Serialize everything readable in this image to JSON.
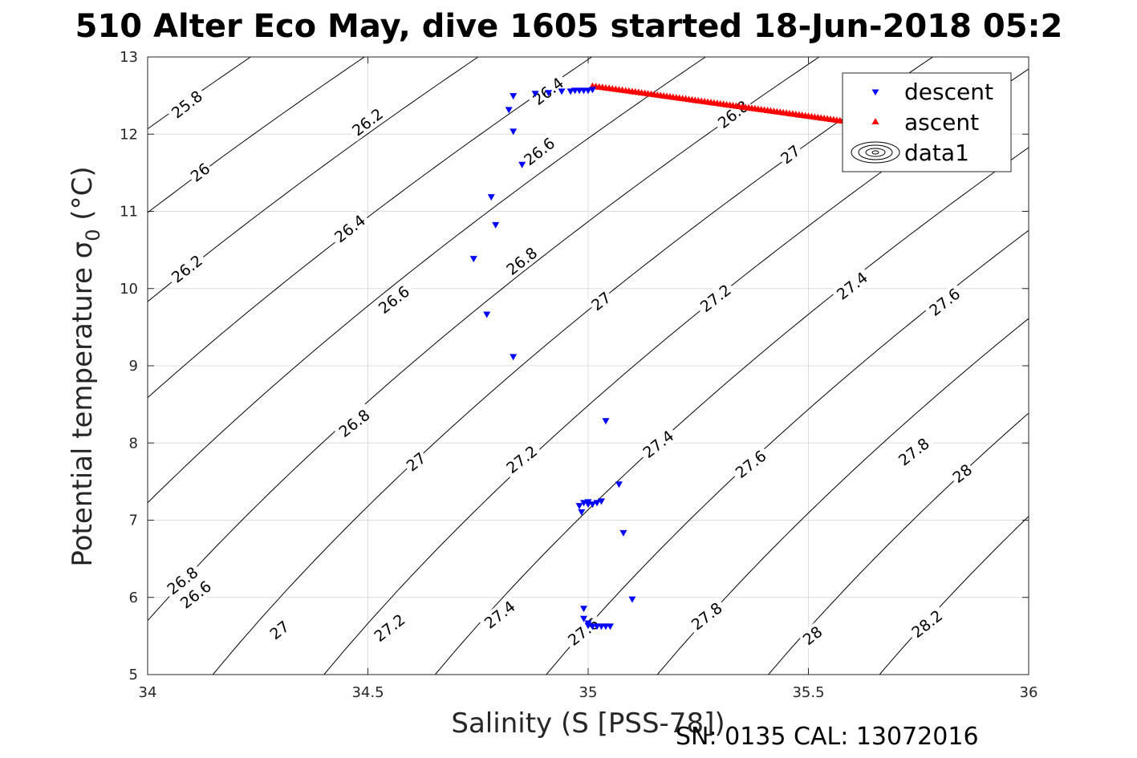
{
  "chart_data": {
    "type": "scatter",
    "title": "510 Alter Eco May, dive 1605 started 18-Jun-2018 05:2",
    "xlabel": "Salinity (S [PSS-78])",
    "ylabel": "Potential temperature σ",
    "ylabel_sub": "0",
    "ylabel_unit": "(°C)",
    "footer": "SN: 0135  CAL: 13072016",
    "xlim": [
      34,
      36
    ],
    "ylim": [
      5,
      13
    ],
    "xticks": [
      34,
      34.5,
      35,
      35.5,
      36
    ],
    "xtick_labels": [
      "34",
      "34.5",
      "35",
      "35.5",
      "36"
    ],
    "yticks": [
      5,
      6,
      7,
      8,
      9,
      10,
      11,
      12,
      13
    ],
    "ytick_labels": [
      "5",
      "6",
      "7",
      "8",
      "9",
      "10",
      "11",
      "12",
      "13"
    ],
    "grid": true,
    "legend_position": "top-right",
    "legend": [
      {
        "name": "descent",
        "marker": "triangle-down",
        "color": "#0000ff"
      },
      {
        "name": "ascent",
        "marker": "triangle-up",
        "color": "#ff0000"
      },
      {
        "name": "data1",
        "marker": "contour",
        "color": "#000000"
      }
    ],
    "contour_levels": [
      25.8,
      26,
      26.2,
      26.4,
      26.6,
      26.8,
      27,
      27.2,
      27.4,
      27.6,
      27.8,
      28,
      28.2
    ],
    "contour_labels": [
      {
        "text": "25.8",
        "s": 34.09,
        "t": 12.38
      },
      {
        "text": "26",
        "s": 34.12,
        "t": 11.5
      },
      {
        "text": "26.2",
        "s": 34.09,
        "t": 10.25
      },
      {
        "text": "26.6",
        "s": 34.11,
        "t": 6.03
      },
      {
        "text": "26.8",
        "s": 34.08,
        "t": 6.21
      },
      {
        "text": "26.2",
        "s": 34.5,
        "t": 12.15
      },
      {
        "text": "26.4",
        "s": 34.46,
        "t": 10.77
      },
      {
        "text": "26.6",
        "s": 34.56,
        "t": 9.85
      },
      {
        "text": "26.8",
        "s": 34.47,
        "t": 8.25
      },
      {
        "text": "27",
        "s": 34.3,
        "t": 5.57
      },
      {
        "text": "27",
        "s": 34.61,
        "t": 7.75
      },
      {
        "text": "27.2",
        "s": 34.55,
        "t": 5.6
      },
      {
        "text": "26.4",
        "s": 34.91,
        "t": 12.55
      },
      {
        "text": "26.6",
        "s": 34.89,
        "t": 11.77
      },
      {
        "text": "26.8",
        "s": 34.85,
        "t": 10.35
      },
      {
        "text": "27",
        "s": 35.03,
        "t": 9.83
      },
      {
        "text": "27.2",
        "s": 34.85,
        "t": 7.78
      },
      {
        "text": "27.4",
        "s": 34.8,
        "t": 5.77
      },
      {
        "text": "27.6",
        "s": 34.99,
        "t": 5.55
      },
      {
        "text": "27.4",
        "s": 35.16,
        "t": 7.98
      },
      {
        "text": "26.8",
        "s": 35.33,
        "t": 12.25
      },
      {
        "text": "27",
        "s": 35.46,
        "t": 11.73
      },
      {
        "text": "27.2",
        "s": 35.29,
        "t": 9.87
      },
      {
        "text": "27.6",
        "s": 35.37,
        "t": 7.72
      },
      {
        "text": "27.8",
        "s": 35.27,
        "t": 5.75
      },
      {
        "text": "27.4",
        "s": 35.6,
        "t": 10.03
      },
      {
        "text": "27.6",
        "s": 35.81,
        "t": 9.82
      },
      {
        "text": "27.8",
        "s": 35.74,
        "t": 7.88
      },
      {
        "text": "28",
        "s": 35.85,
        "t": 7.6
      },
      {
        "text": "28",
        "s": 35.51,
        "t": 5.5
      },
      {
        "text": "28.2",
        "s": 35.77,
        "t": 5.65
      }
    ],
    "series": [
      {
        "name": "descent",
        "x": [
          34.83,
          34.82,
          34.83,
          34.85,
          34.78,
          34.79,
          34.74,
          34.77,
          34.83,
          34.88,
          34.91,
          34.94,
          34.96,
          34.97,
          34.98,
          34.99,
          35.0,
          35.01,
          35.04,
          35.07,
          35.0,
          34.98,
          34.99,
          35.0,
          35.01,
          35.02,
          35.03,
          34.985,
          35.08,
          35.1,
          34.99,
          34.99,
          35.0,
          35.0,
          35.01,
          35.02,
          35.03,
          35.04,
          35.05
        ],
        "y": [
          12.49,
          12.31,
          12.03,
          11.6,
          11.18,
          10.82,
          10.38,
          9.66,
          9.11,
          12.52,
          12.53,
          12.55,
          12.55,
          12.56,
          12.56,
          12.56,
          12.56,
          12.57,
          8.28,
          7.46,
          7.2,
          7.18,
          7.22,
          7.23,
          7.2,
          7.22,
          7.24,
          7.1,
          6.83,
          5.97,
          5.85,
          5.72,
          5.66,
          5.63,
          5.62,
          5.62,
          5.62,
          5.62,
          5.62
        ]
      },
      {
        "name": "ascent",
        "x": [
          35.01,
          35.1,
          35.2,
          35.3,
          35.4,
          35.5,
          35.6,
          35.7
        ],
        "y": [
          12.62,
          12.55,
          12.47,
          12.39,
          12.31,
          12.23,
          12.15,
          12.07
        ]
      }
    ]
  }
}
